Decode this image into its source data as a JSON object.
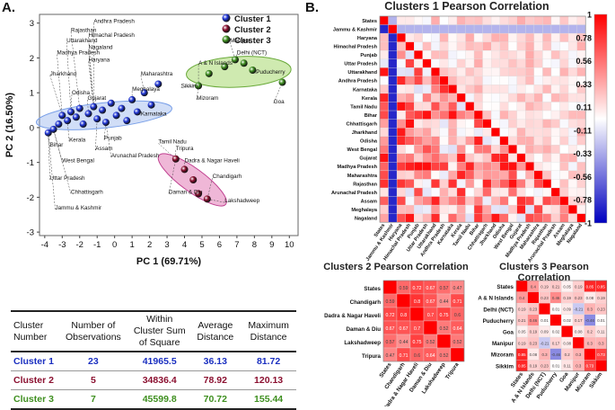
{
  "panel_labels": {
    "a": "A.",
    "b": "B."
  },
  "colors": {
    "cluster1": "#1f35d6",
    "cluster2": "#8b1030",
    "cluster3": "#3e8f1f",
    "ellipse1": "#7aa0e8",
    "ellipse2": "#e070b0",
    "ellipse3": "#a8d870",
    "pos": "#ff0000",
    "neg": "#0000c0"
  },
  "chart_data": [
    {
      "type": "scatter",
      "title": "",
      "xlabel": "PC 1 (69.71%)",
      "ylabel": "PC 2 (16.50%)",
      "xlim": [
        -4.3,
        10.5
      ],
      "ylim": [
        -3.1,
        3.25
      ],
      "xticks": [
        -4,
        -3,
        -2,
        -1,
        0,
        1,
        2,
        3,
        4,
        5,
        6,
        7,
        8,
        9,
        10
      ],
      "yticks": [
        -3,
        -2,
        -1,
        0,
        1,
        2,
        3
      ],
      "legend": {
        "position": "top-right",
        "entries": [
          "Cluster 1",
          "Cluster 2",
          "Cluster 3"
        ]
      },
      "series": [
        {
          "name": "Cluster 1",
          "points": [
            {
              "x": -3.8,
              "y": -0.15
            },
            {
              "x": -3.5,
              "y": -0.05
            },
            {
              "x": -3.2,
              "y": 0.1
            },
            {
              "x": -3.0,
              "y": 0.35
            },
            {
              "x": -2.7,
              "y": 0.2
            },
            {
              "x": -2.5,
              "y": 0.45
            },
            {
              "x": -2.2,
              "y": 0.3
            },
            {
              "x": -2.0,
              "y": 0.55
            },
            {
              "x": -1.8,
              "y": 0.1
            },
            {
              "x": -1.5,
              "y": 0.4
            },
            {
              "x": -1.2,
              "y": 0.6
            },
            {
              "x": -1.0,
              "y": 0.25
            },
            {
              "x": -0.7,
              "y": 0.5
            },
            {
              "x": -0.5,
              "y": 0.15
            },
            {
              "x": -0.2,
              "y": 0.7
            },
            {
              "x": 0.1,
              "y": 0.35
            },
            {
              "x": 0.4,
              "y": 0.55
            },
            {
              "x": 0.7,
              "y": 0.2
            },
            {
              "x": 1.0,
              "y": 0.8
            },
            {
              "x": 1.3,
              "y": 0.45
            },
            {
              "x": 1.7,
              "y": 1.0
            },
            {
              "x": 2.1,
              "y": 0.65
            },
            {
              "x": 2.5,
              "y": 1.25
            }
          ]
        },
        {
          "name": "Cluster 2",
          "points": [
            {
              "x": 3.5,
              "y": -0.9
            },
            {
              "x": 4.0,
              "y": -1.2
            },
            {
              "x": 4.5,
              "y": -1.5
            },
            {
              "x": 4.8,
              "y": -1.9
            },
            {
              "x": 5.3,
              "y": -2.05
            }
          ]
        },
        {
          "name": "Cluster 3",
          "points": [
            {
              "x": 4.8,
              "y": 1.2
            },
            {
              "x": 5.4,
              "y": 1.55
            },
            {
              "x": 6.3,
              "y": 1.75
            },
            {
              "x": 6.9,
              "y": 1.95
            },
            {
              "x": 7.4,
              "y": 1.85
            },
            {
              "x": 7.9,
              "y": 1.65
            },
            {
              "x": 9.6,
              "y": 1.3
            }
          ]
        }
      ],
      "labels": [
        {
          "text": "Andhra Pradesh",
          "x": -1.2,
          "y": 3.0
        },
        {
          "text": "Rajasthan",
          "x": -2.5,
          "y": 2.75
        },
        {
          "text": "Himachal Pradesh",
          "x": -1.5,
          "y": 2.6
        },
        {
          "text": "Uttarakhand",
          "x": -2.75,
          "y": 2.45
        },
        {
          "text": "Nagaland",
          "x": -1.5,
          "y": 2.25
        },
        {
          "text": "Madhya Pradesh",
          "x": -3.3,
          "y": 2.1
        },
        {
          "text": "Haryana",
          "x": -1.5,
          "y": 1.9
        },
        {
          "text": "Jharkhand",
          "x": -3.7,
          "y": 1.5
        },
        {
          "text": "Odisha",
          "x": -2.45,
          "y": 0.95
        },
        {
          "text": "Gujarat",
          "x": -1.55,
          "y": 0.8
        },
        {
          "text": "Maharashtra",
          "x": 1.5,
          "y": 1.5
        },
        {
          "text": "Meghalaya",
          "x": 1.0,
          "y": 1.05
        },
        {
          "text": "Karnataka",
          "x": 1.5,
          "y": 0.35
        },
        {
          "text": "Bihar",
          "x": -3.7,
          "y": -0.55
        },
        {
          "text": "Kerala",
          "x": -2.6,
          "y": -0.4
        },
        {
          "text": "Punjab",
          "x": -0.6,
          "y": -0.35
        },
        {
          "text": "Assam",
          "x": -1.1,
          "y": -0.65
        },
        {
          "text": "Arunachal Pradesh",
          "x": -0.2,
          "y": -0.85
        },
        {
          "text": "Tamil Nadu",
          "x": 2.5,
          "y": -0.45
        },
        {
          "text": "West Bengal",
          "x": -3.0,
          "y": -1.0
        },
        {
          "text": "Uttar Pradesh",
          "x": -3.7,
          "y": -1.5
        },
        {
          "text": "Chhattisgarh",
          "x": -2.5,
          "y": -1.9
        },
        {
          "text": "Jammu & Kashmir",
          "x": -3.4,
          "y": -2.35
        },
        {
          "text": "Manipur",
          "x": 6.6,
          "y": 2.45
        },
        {
          "text": "Delhi (NCT)",
          "x": 7.0,
          "y": 2.1
        },
        {
          "text": "A & N Islands",
          "x": 4.8,
          "y": 1.8
        },
        {
          "text": "Puducherry",
          "x": 8.1,
          "y": 1.55
        },
        {
          "text": "Sikkim",
          "x": 3.8,
          "y": 1.15
        },
        {
          "text": "Mizoram",
          "x": 4.7,
          "y": 0.8
        },
        {
          "text": "Goa",
          "x": 9.1,
          "y": 0.7
        },
        {
          "text": "Tripura",
          "x": 3.5,
          "y": -0.65
        },
        {
          "text": "Dadra & Nagar Haveli",
          "x": 4.0,
          "y": -1.0
        },
        {
          "text": "Chandigarh",
          "x": 5.6,
          "y": -1.45
        },
        {
          "text": "Daman & Diu",
          "x": 3.1,
          "y": -1.9
        },
        {
          "text": "Lakshadweep",
          "x": 6.3,
          "y": -2.15
        }
      ]
    },
    {
      "type": "heatmap",
      "title": "Clusters 1 Pearson Correlation",
      "rows": [
        "States",
        "Jammu & Kashmir",
        "Haryana",
        "Himachal Pradesh",
        "Punjab",
        "Uttar Pradesh",
        "Uttarakhand",
        "Andhra Pradesh",
        "Karnataka",
        "Kerala",
        "Tamil Nadu",
        "Bihar",
        "Chhattisgarh",
        "Jharkhand",
        "Odisha",
        "West Bengal",
        "Gujarat",
        "Madhya Pradesh",
        "Maharashtra",
        "Rajasthan",
        "Arunachal Pradesh",
        "Assam",
        "Meghalaya",
        "Nagaland"
      ],
      "columns": [
        "States",
        "Jammu & Kashmir",
        "Haryana",
        "Himachal Pradesh",
        "Punjab",
        "Uttar Pradesh",
        "Uttarakhand",
        "Andhra Pradesh",
        "Karnataka",
        "Kerala",
        "Tamil Nadu",
        "Bihar",
        "Chhattisgarh",
        "Jharkhand",
        "Odisha",
        "West Bengal",
        "Gujarat",
        "Madhya Pradesh",
        "Maharashtra",
        "Rajasthan",
        "Arunachal Pradesh",
        "Assam",
        "Meghalaya",
        "Nagaland"
      ],
      "colorbar": {
        "ticks": [
          "1",
          "0.78",
          "0.56",
          "0.33",
          "0.11",
          "-0.11",
          "-0.33",
          "-0.56",
          "-0.78",
          "-1"
        ],
        "range": [
          -1,
          1
        ]
      }
    },
    {
      "type": "heatmap",
      "title": "Clusters 2 Pearson Correlation",
      "rows": [
        "States",
        "Chandigarh",
        "Dadra & Nagar Haveli",
        "Daman & Diu",
        "Lakshadweep",
        "Tripura"
      ],
      "columns": [
        "States",
        "Chandigarh",
        "Dadra & Nagar Haveli",
        "Daman & Diu",
        "Lakshadweep",
        "Tripura"
      ],
      "values": [
        [
          1,
          0.59,
          0.72,
          0.67,
          0.57,
          0.47
        ],
        [
          0.59,
          1,
          0.8,
          0.67,
          0.44,
          0.71
        ],
        [
          0.72,
          0.8,
          1,
          0.7,
          0.75,
          0.6
        ],
        [
          0.67,
          0.67,
          0.7,
          1,
          0.52,
          0.64
        ],
        [
          0.57,
          0.44,
          0.75,
          0.52,
          1,
          0.52
        ],
        [
          0.47,
          0.71,
          0.6,
          0.64,
          0.52,
          1
        ]
      ]
    },
    {
      "type": "heatmap",
      "title": "Clusters 3 Pearson Correlation",
      "rows": [
        "States",
        "A & N Islands",
        "Delhi (NCT)",
        "Puducherry",
        "Goa",
        "Manipur",
        "Mizoram",
        "Sikkim"
      ],
      "columns": [
        "States",
        "A & N Islands",
        "Delhi (NCT)",
        "Puducherry",
        "Goa",
        "Manipur",
        "Mizoram",
        "Sikkim"
      ],
      "values": [
        [
          1,
          0.4,
          0.19,
          0.21,
          0.052,
          0.19,
          0.85,
          0.85
        ],
        [
          0.4,
          1,
          0.23,
          0.46,
          0.19,
          0.23,
          0.084,
          0.19
        ],
        [
          0.19,
          0.23,
          1,
          0.011,
          0.088,
          -0.21,
          0.3,
          0.23
        ],
        [
          0.21,
          0.46,
          0.011,
          1,
          0.024,
          0.17,
          -0.46,
          0.011
        ],
        [
          0.052,
          0.19,
          0.088,
          0.024,
          1,
          0.079,
          0.2,
          0.11
        ],
        [
          0.19,
          0.23,
          -0.21,
          0.17,
          0.079,
          1,
          0.3,
          0.3
        ],
        [
          0.85,
          0.084,
          0.3,
          -0.46,
          0.2,
          0.3,
          1,
          0.73
        ],
        [
          0.85,
          0.19,
          0.23,
          0.011,
          0.11,
          0.3,
          0.73,
          1
        ]
      ]
    }
  ],
  "cluster_table": {
    "headers": [
      "Cluster Number",
      "Number of Observations",
      "Within Cluster Sum of Square",
      "Average Distance",
      "Maximum Distance"
    ],
    "rows": [
      {
        "cluster": "Cluster 1",
        "observations": "23",
        "sum_of_square": "41965.5",
        "avg_distance": "36.13",
        "max_distance": "81.72"
      },
      {
        "cluster": "Cluster 2",
        "observations": "5",
        "sum_of_square": "34836.4",
        "avg_distance": "78.92",
        "max_distance": "120.13"
      },
      {
        "cluster": "Cluster 3",
        "observations": "7",
        "sum_of_square": "45599.8",
        "avg_distance": "70.72",
        "max_distance": "155.44"
      }
    ]
  }
}
